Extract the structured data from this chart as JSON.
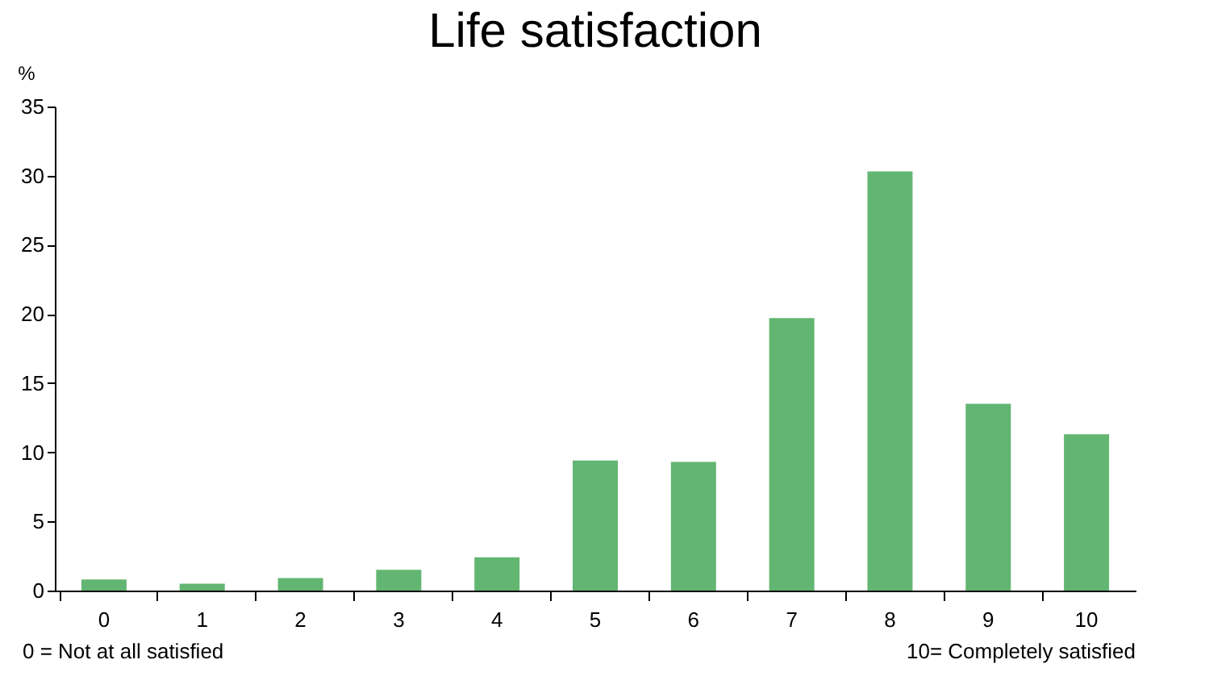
{
  "chart_data": {
    "type": "bar",
    "title": "Life satisfaction",
    "ylabel": "%",
    "categories": [
      "0",
      "1",
      "2",
      "3",
      "4",
      "5",
      "6",
      "7",
      "8",
      "9",
      "10"
    ],
    "values": [
      0.8,
      0.5,
      0.9,
      1.5,
      2.4,
      9.4,
      9.3,
      19.7,
      30.3,
      13.5,
      11.3
    ],
    "color": "#63b672",
    "ylim": [
      0,
      35
    ],
    "yticks": [
      0,
      5,
      10,
      15,
      20,
      25,
      30,
      35
    ],
    "grid": false,
    "annotations": [
      "0 = Not at all satisfied",
      "10= Completely satisfied"
    ]
  }
}
